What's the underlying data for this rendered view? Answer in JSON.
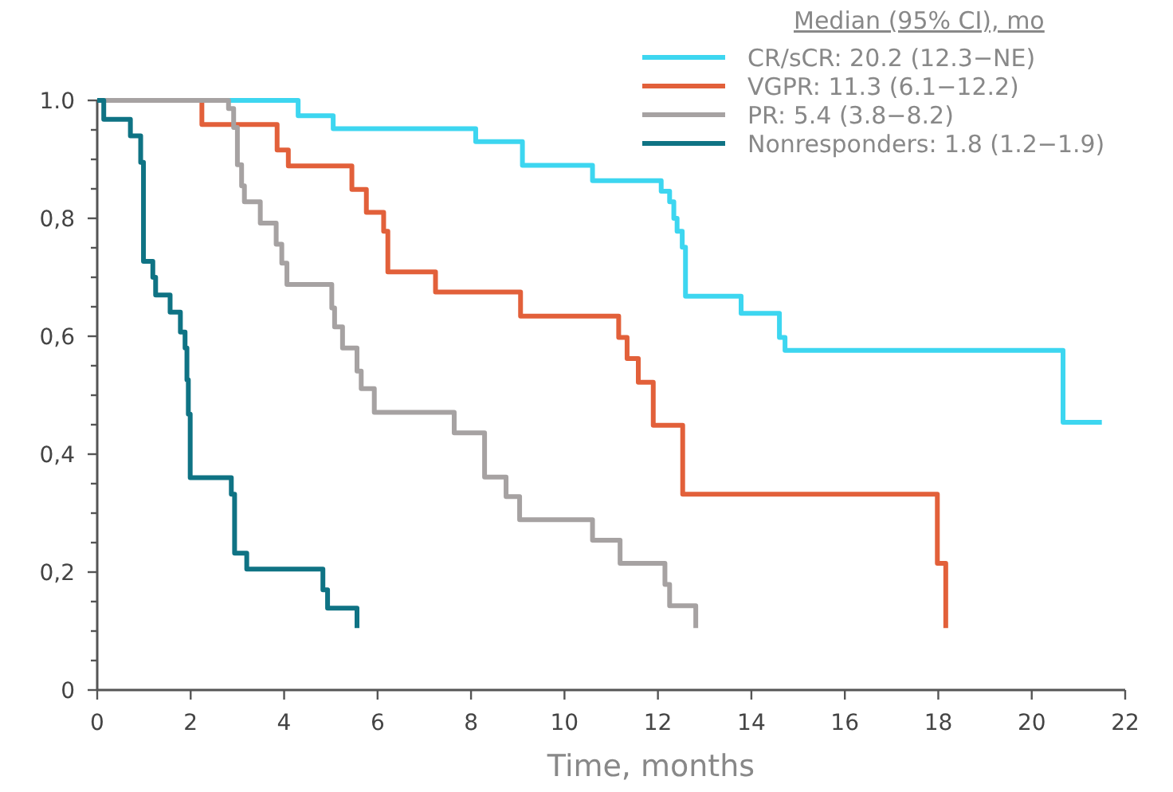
{
  "chart_data": {
    "type": "step",
    "xlabel": "Time, months",
    "legend_title": "Median (95% CI), mo",
    "legend": "top right",
    "grid": false,
    "marker": "none",
    "line_style": "solid",
    "xlim": [
      0,
      22
    ],
    "xticks": [
      0,
      2,
      4,
      6,
      8,
      10,
      12,
      14,
      16,
      18,
      20,
      22
    ],
    "ylim": [
      0,
      1
    ],
    "yticks": [
      {
        "value": 0,
        "label": "0"
      },
      {
        "value": 0.05,
        "label": null
      },
      {
        "value": 0.1,
        "label": null
      },
      {
        "value": 0.15,
        "label": null
      },
      {
        "value": 0.2,
        "label": "0,2"
      },
      {
        "value": 0.25,
        "label": null
      },
      {
        "value": 0.3,
        "label": null
      },
      {
        "value": 0.35,
        "label": null
      },
      {
        "value": 0.4,
        "label": "0,4"
      },
      {
        "value": 0.45,
        "label": null
      },
      {
        "value": 0.5,
        "label": null
      },
      {
        "value": 0.55,
        "label": null
      },
      {
        "value": 0.6,
        "label": "0,6"
      },
      {
        "value": 0.65,
        "label": null
      },
      {
        "value": 0.7,
        "label": null
      },
      {
        "value": 0.75,
        "label": null
      },
      {
        "value": 0.8,
        "label": "0,8"
      },
      {
        "value": 0.85,
        "label": null
      },
      {
        "value": 0.9,
        "label": null
      },
      {
        "value": 0.95,
        "label": null
      },
      {
        "value": 1,
        "label": "1.0"
      }
    ],
    "series": [
      {
        "name": "CR/sCR: 20.2 (12.3−NE)",
        "color": "#3dd6f0",
        "x": [
          0,
          4.3,
          5.05,
          8.1,
          9.1,
          10.6,
          12.07,
          12.25,
          12.34,
          12.41,
          12.52,
          12.59,
          13.78,
          14.6,
          14.72,
          20.67,
          21.5
        ],
        "values": [
          1,
          0.974,
          0.952,
          0.93,
          0.89,
          0.864,
          0.846,
          0.828,
          0.8,
          0.778,
          0.751,
          0.668,
          0.639,
          0.598,
          0.576,
          0.454,
          0.454
        ]
      },
      {
        "name": "VGPR: 11.3 (6.1−12.2)",
        "color": "#e2603a",
        "x": [
          0,
          2.24,
          3.85,
          4.09,
          5.45,
          5.76,
          6.13,
          6.22,
          7.24,
          9.06,
          11.16,
          11.34,
          11.58,
          11.9,
          12.53,
          17.98,
          18.16
        ],
        "values": [
          1,
          0.959,
          0.916,
          0.889,
          0.849,
          0.81,
          0.778,
          0.709,
          0.675,
          0.634,
          0.598,
          0.562,
          0.522,
          0.449,
          0.332,
          0.215,
          0.105
        ]
      },
      {
        "name": "PR: 5.4 (3.8−8.2)",
        "color": "#a6a2a2",
        "x": [
          0,
          2.81,
          2.92,
          3.0,
          3.09,
          3.15,
          3.49,
          3.83,
          3.95,
          4.06,
          5.02,
          5.08,
          5.25,
          5.56,
          5.65,
          5.93,
          7.64,
          8.29,
          8.75,
          9.04,
          10.6,
          11.19,
          12.15,
          12.25,
          12.81
        ],
        "values": [
          1,
          0.986,
          0.954,
          0.891,
          0.855,
          0.828,
          0.792,
          0.756,
          0.724,
          0.688,
          0.648,
          0.616,
          0.58,
          0.541,
          0.511,
          0.471,
          0.436,
          0.361,
          0.328,
          0.289,
          0.254,
          0.215,
          0.179,
          0.143,
          0.105
        ]
      },
      {
        "name": "Nonresponders: 1.8 (1.2−1.9)",
        "color": "#0f7384",
        "x": [
          0,
          0.14,
          0.71,
          0.93,
          0.99,
          1.19,
          1.25,
          1.56,
          1.78,
          1.88,
          1.92,
          1.95,
          1.99,
          2.87,
          2.94,
          3.2,
          4.83,
          4.93,
          5.56
        ],
        "values": [
          1,
          0.968,
          0.94,
          0.895,
          0.727,
          0.7,
          0.67,
          0.641,
          0.607,
          0.58,
          0.526,
          0.468,
          0.36,
          0.332,
          0.232,
          0.205,
          0.17,
          0.139,
          0.105
        ]
      }
    ]
  }
}
